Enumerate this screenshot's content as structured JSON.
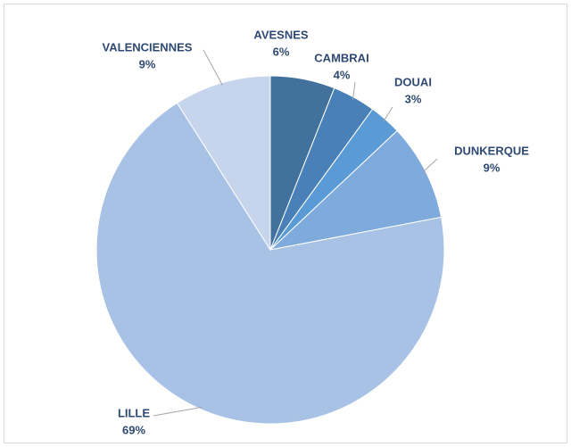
{
  "chart_data": {
    "type": "pie",
    "categories": [
      "AVESNES",
      "CAMBRAI",
      "DOUAI",
      "DUNKERQUE",
      "LILLE",
      "VALENCIENNES"
    ],
    "values": [
      6,
      4,
      3,
      9,
      69,
      9
    ],
    "value_labels": [
      "6%",
      "4%",
      "3%",
      "9%",
      "69%",
      "9%"
    ],
    "colors": [
      "#41719c",
      "#4a80b8",
      "#5b9bd5",
      "#7eaadc",
      "#a8c2e5",
      "#c6d5eb"
    ]
  }
}
